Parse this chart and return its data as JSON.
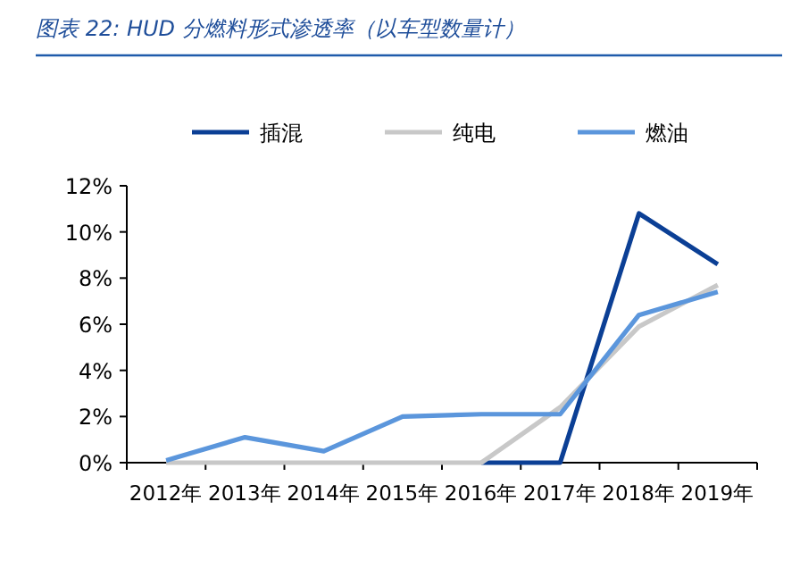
{
  "chart_data": {
    "type": "line",
    "title": "图表 22:  HUD 分燃料形式渗透率（以车型数量计）",
    "categories": [
      "2012年",
      "2013年",
      "2014年",
      "2015年",
      "2016年",
      "2017年",
      "2018年",
      "2019年"
    ],
    "series": [
      {
        "name": "插混",
        "color": "#0b3f95",
        "values": [
          null,
          null,
          null,
          null,
          0,
          0,
          10.8,
          8.6
        ]
      },
      {
        "name": "纯电",
        "color": "#c8c8c8",
        "values": [
          0,
          0,
          0,
          0,
          0,
          2.4,
          5.9,
          7.7
        ]
      },
      {
        "name": "燃油",
        "color": "#5b96dc",
        "values": [
          0.1,
          1.1,
          0.5,
          2.0,
          2.1,
          2.1,
          6.4,
          7.4
        ]
      }
    ],
    "ylim": [
      0,
      12
    ],
    "yticks": [
      {
        "value": 0,
        "label": "0%"
      },
      {
        "value": 2,
        "label": "2%"
      },
      {
        "value": 4,
        "label": "4%"
      },
      {
        "value": 6,
        "label": "6%"
      },
      {
        "value": 8,
        "label": "8%"
      },
      {
        "value": 10,
        "label": "10%"
      },
      {
        "value": 12,
        "label": "12%"
      }
    ],
    "legend": "top",
    "grid": false,
    "marker": "none",
    "line_style": "solid"
  }
}
